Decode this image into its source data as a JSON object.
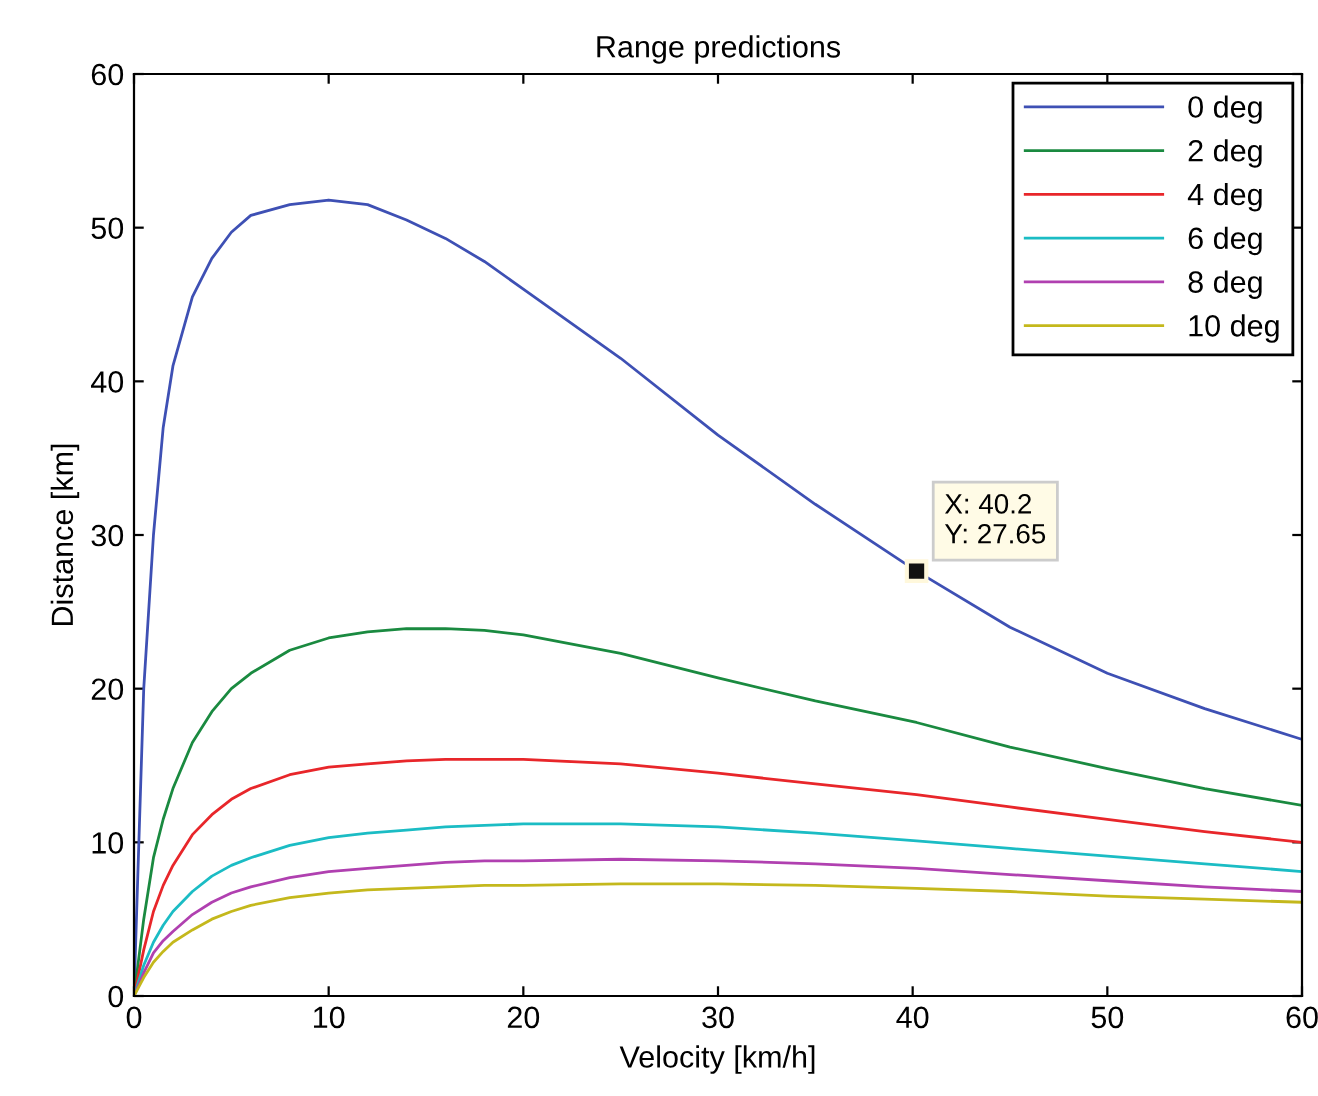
{
  "chart_data": {
    "type": "line",
    "title": "Range predictions",
    "xlabel": "Velocity [km/h]",
    "ylabel": "Distance [km]",
    "x": [
      0,
      0.5,
      1,
      1.5,
      2,
      3,
      4,
      5,
      6,
      8,
      10,
      12,
      14,
      16,
      18,
      20,
      25,
      30,
      35,
      40.2,
      45,
      50,
      55,
      60
    ],
    "series": [
      {
        "name": "0 deg",
        "color": "#3e50b4",
        "values": [
          0,
          20,
          30,
          37,
          41,
          45.5,
          48,
          49.7,
          50.8,
          51.5,
          51.8,
          51.5,
          50.5,
          49.3,
          47.8,
          46,
          41.5,
          36.5,
          32,
          27.65,
          24,
          21,
          18.7,
          16.7
        ]
      },
      {
        "name": "2 deg",
        "color": "#1a8a40",
        "values": [
          0,
          5,
          9,
          11.5,
          13.5,
          16.5,
          18.5,
          20,
          21,
          22.5,
          23.3,
          23.7,
          23.9,
          23.9,
          23.8,
          23.5,
          22.3,
          20.7,
          19.2,
          17.8,
          16.2,
          14.8,
          13.5,
          12.4
        ]
      },
      {
        "name": "4 deg",
        "color": "#e8262a",
        "values": [
          0,
          3,
          5.5,
          7.2,
          8.5,
          10.5,
          11.8,
          12.8,
          13.5,
          14.4,
          14.9,
          15.1,
          15.3,
          15.4,
          15.4,
          15.4,
          15.1,
          14.5,
          13.8,
          13.1,
          12.3,
          11.5,
          10.7,
          10.0
        ]
      },
      {
        "name": "6 deg",
        "color": "#1bbcc4",
        "values": [
          0,
          2,
          3.5,
          4.6,
          5.5,
          6.8,
          7.8,
          8.5,
          9,
          9.8,
          10.3,
          10.6,
          10.8,
          11,
          11.1,
          11.2,
          11.2,
          11,
          10.6,
          10.1,
          9.6,
          9.1,
          8.6,
          8.1
        ]
      },
      {
        "name": "8 deg",
        "color": "#b040b0",
        "values": [
          0,
          1.5,
          2.8,
          3.6,
          4.2,
          5.3,
          6.1,
          6.7,
          7.1,
          7.7,
          8.1,
          8.3,
          8.5,
          8.7,
          8.8,
          8.8,
          8.9,
          8.8,
          8.6,
          8.3,
          7.9,
          7.5,
          7.1,
          6.8
        ]
      },
      {
        "name": "10 deg",
        "color": "#c4b81c",
        "values": [
          0,
          1.2,
          2.2,
          2.9,
          3.5,
          4.3,
          5,
          5.5,
          5.9,
          6.4,
          6.7,
          6.9,
          7.0,
          7.1,
          7.2,
          7.2,
          7.3,
          7.3,
          7.2,
          7.0,
          6.8,
          6.5,
          6.3,
          6.1
        ]
      }
    ],
    "xlim": [
      0,
      60
    ],
    "ylim": [
      0,
      60
    ],
    "xticks": [
      0,
      10,
      20,
      30,
      40,
      50,
      60
    ],
    "yticks": [
      0,
      10,
      20,
      30,
      40,
      50,
      60
    ],
    "grid": false,
    "legend": "top right",
    "annotations": [
      {
        "text": "X: 40.2\nY: 27.65",
        "x": 40.2,
        "y": 27.65
      }
    ]
  }
}
